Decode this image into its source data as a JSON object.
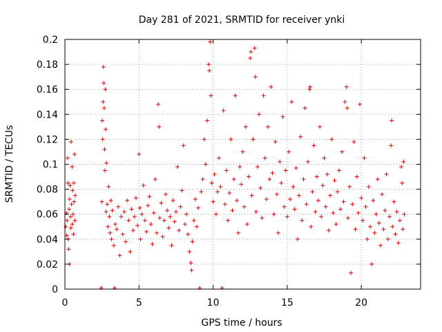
{
  "chart_data": {
    "type": "scatter",
    "title": "Day 281 of 2021, SRMTID for receiver ynki",
    "xlabel": "GPS time / hours",
    "ylabel": "SRMTID / TECUs",
    "xlim": [
      0,
      24
    ],
    "ylim": [
      0,
      0.2
    ],
    "x_ticks": [
      0,
      5,
      10,
      15,
      20
    ],
    "x_tick_labels": [
      "0",
      "5",
      "10",
      "15",
      "20"
    ],
    "y_ticks": [
      0,
      0.02,
      0.04,
      0.06,
      0.08,
      0.1,
      0.12,
      0.14,
      0.16,
      0.18,
      0.2
    ],
    "y_tick_labels": [
      "0",
      "0.02",
      "0.04",
      "0.06",
      "0.08",
      "0.1",
      "0.12",
      "0.14",
      "0.16",
      "0.18",
      "0.2"
    ],
    "grid": true,
    "marker": "+",
    "color": "#dd0000",
    "series": [
      {
        "name": "SRMTID",
        "points": [
          [
            0.05,
            0.05
          ],
          [
            0.1,
            0.061
          ],
          [
            0.12,
            0.043
          ],
          [
            0.15,
            0.055
          ],
          [
            0.18,
            0.105
          ],
          [
            0.2,
            0.085
          ],
          [
            0.22,
            0.04
          ],
          [
            0.25,
            0.032
          ],
          [
            0.28,
            0.064
          ],
          [
            0.3,
            0.02
          ],
          [
            0.32,
            0.072
          ],
          [
            0.35,
            0.083
          ],
          [
            0.38,
            0.058
          ],
          [
            0.4,
            0.049
          ],
          [
            0.42,
            0.118
          ],
          [
            0.45,
            0.068
          ],
          [
            0.48,
            0.098
          ],
          [
            0.5,
            0.052
          ],
          [
            0.52,
            0.079
          ],
          [
            0.55,
            0.06
          ],
          [
            0.58,
            0.044
          ],
          [
            0.6,
            0.085
          ],
          [
            0.62,
            0.07
          ],
          [
            0.65,
            0.108
          ],
          [
            0.68,
            0.055
          ],
          [
            0.7,
            0.075
          ],
          [
            2.45,
            0.001
          ],
          [
            2.5,
            0.07
          ],
          [
            2.52,
            0.135
          ],
          [
            2.55,
            0.12
          ],
          [
            2.58,
            0.15
          ],
          [
            2.6,
            0.178
          ],
          [
            2.62,
            0.165
          ],
          [
            2.65,
            0.145
          ],
          [
            2.68,
            0.112
          ],
          [
            2.7,
            0.095
          ],
          [
            2.72,
            0.16
          ],
          [
            2.75,
            0.128
          ],
          [
            2.78,
            0.062
          ],
          [
            2.8,
            0.101
          ],
          [
            2.85,
            0.068
          ],
          [
            2.9,
            0.05
          ],
          [
            2.95,
            0.082
          ],
          [
            3.0,
            0.058
          ],
          [
            3.05,
            0.045
          ],
          [
            3.1,
            0.071
          ],
          [
            3.15,
            0.04
          ],
          [
            3.2,
            0.063
          ],
          [
            3.3,
            0.035
          ],
          [
            3.35,
            0.001
          ],
          [
            3.4,
            0.052
          ],
          [
            3.5,
            0.048
          ],
          [
            3.6,
            0.066
          ],
          [
            3.7,
            0.027
          ],
          [
            3.8,
            0.058
          ],
          [
            3.9,
            0.044
          ],
          [
            4.0,
            0.062
          ],
          [
            4.1,
            0.038
          ],
          [
            4.2,
            0.071
          ],
          [
            4.3,
            0.055
          ],
          [
            4.4,
            0.03
          ],
          [
            4.5,
            0.064
          ],
          [
            4.6,
            0.047
          ],
          [
            4.7,
            0.058
          ],
          [
            4.8,
            0.073
          ],
          [
            4.9,
            0.051
          ],
          [
            5.0,
            0.108
          ],
          [
            5.05,
            0.065
          ],
          [
            5.1,
            0.04
          ],
          [
            5.2,
            0.06
          ],
          [
            5.3,
            0.083
          ],
          [
            5.4,
            0.055
          ],
          [
            5.5,
            0.046
          ],
          [
            5.6,
            0.067
          ],
          [
            5.7,
            0.074
          ],
          [
            5.8,
            0.052
          ],
          [
            5.9,
            0.036
          ],
          [
            6.0,
            0.061
          ],
          [
            6.1,
            0.088
          ],
          [
            6.2,
            0.045
          ],
          [
            6.3,
            0.148
          ],
          [
            6.35,
            0.13
          ],
          [
            6.4,
            0.057
          ],
          [
            6.5,
            0.069
          ],
          [
            6.6,
            0.042
          ],
          [
            6.7,
            0.055
          ],
          [
            6.8,
            0.076
          ],
          [
            6.9,
            0.063
          ],
          [
            7.0,
            0.049
          ],
          [
            7.1,
            0.058
          ],
          [
            7.2,
            0.035
          ],
          [
            7.3,
            0.071
          ],
          [
            7.4,
            0.054
          ],
          [
            7.5,
            0.062
          ],
          [
            7.6,
            0.098
          ],
          [
            7.7,
            0.047
          ],
          [
            7.8,
            0.066
          ],
          [
            7.9,
            0.079
          ],
          [
            8.0,
            0.115
          ],
          [
            8.1,
            0.052
          ],
          [
            8.2,
            0.06
          ],
          [
            8.3,
            0.044
          ],
          [
            8.4,
            0.03
          ],
          [
            8.5,
            0.021
          ],
          [
            8.55,
            0.015
          ],
          [
            8.6,
            0.038
          ],
          [
            8.7,
            0.055
          ],
          [
            8.8,
            0.072
          ],
          [
            8.9,
            0.05
          ],
          [
            9.0,
            0.065
          ],
          [
            9.1,
            0.001
          ],
          [
            9.2,
            0.078
          ],
          [
            9.3,
            0.088
          ],
          [
            9.4,
            0.12
          ],
          [
            9.5,
            0.1
          ],
          [
            9.6,
            0.135
          ],
          [
            9.7,
            0.18
          ],
          [
            9.75,
            0.175
          ],
          [
            9.8,
            0.198
          ],
          [
            9.85,
            0.155
          ],
          [
            9.9,
            0.085
          ],
          [
            10.0,
            0.07
          ],
          [
            10.1,
            0.092
          ],
          [
            10.2,
            0.06
          ],
          [
            10.3,
            0.078
          ],
          [
            10.4,
            0.105
          ],
          [
            10.5,
            0.082
          ],
          [
            10.6,
            0.001
          ],
          [
            10.7,
            0.143
          ],
          [
            10.8,
            0.068
          ],
          [
            10.9,
            0.095
          ],
          [
            11.0,
            0.055
          ],
          [
            11.1,
            0.077
          ],
          [
            11.2,
            0.12
          ],
          [
            11.3,
            0.063
          ],
          [
            11.4,
            0.088
          ],
          [
            11.5,
            0.155
          ],
          [
            11.6,
            0.071
          ],
          [
            11.7,
            0.045
          ],
          [
            11.8,
            0.098
          ],
          [
            11.9,
            0.084
          ],
          [
            12.0,
            0.11
          ],
          [
            12.1,
            0.066
          ],
          [
            12.2,
            0.13
          ],
          [
            12.3,
            0.052
          ],
          [
            12.4,
            0.09
          ],
          [
            12.5,
            0.185
          ],
          [
            12.55,
            0.19
          ],
          [
            12.6,
            0.075
          ],
          [
            12.7,
            0.12
          ],
          [
            12.8,
            0.193
          ],
          [
            12.85,
            0.17
          ],
          [
            12.9,
            0.062
          ],
          [
            13.0,
            0.098
          ],
          [
            13.1,
            0.14
          ],
          [
            13.2,
            0.081
          ],
          [
            13.3,
            0.057
          ],
          [
            13.4,
            0.155
          ],
          [
            13.5,
            0.105
          ],
          [
            13.6,
            0.072
          ],
          [
            13.7,
            0.13
          ],
          [
            13.8,
            0.088
          ],
          [
            13.9,
            0.162
          ],
          [
            14.0,
            0.093
          ],
          [
            14.1,
            0.06
          ],
          [
            14.2,
            0.118
          ],
          [
            14.3,
            0.076
          ],
          [
            14.4,
            0.045
          ],
          [
            14.5,
            0.102
          ],
          [
            14.6,
            0.085
          ],
          [
            14.7,
            0.138
          ],
          [
            14.8,
            0.066
          ],
          [
            14.9,
            0.095
          ],
          [
            15.0,
            0.058
          ],
          [
            15.1,
            0.11
          ],
          [
            15.2,
            0.072
          ],
          [
            15.3,
            0.15
          ],
          [
            15.4,
            0.082
          ],
          [
            15.5,
            0.064
          ],
          [
            15.6,
            0.097
          ],
          [
            15.7,
            0.04
          ],
          [
            15.8,
            0.075
          ],
          [
            15.9,
            0.122
          ],
          [
            16.0,
            0.055
          ],
          [
            16.1,
            0.088
          ],
          [
            16.2,
            0.145
          ],
          [
            16.3,
            0.068
          ],
          [
            16.4,
            0.102
          ],
          [
            16.5,
            0.16
          ],
          [
            16.55,
            0.162
          ],
          [
            16.6,
            0.05
          ],
          [
            16.7,
            0.078
          ],
          [
            16.8,
            0.115
          ],
          [
            16.9,
            0.062
          ],
          [
            17.0,
            0.09
          ],
          [
            17.1,
            0.071
          ],
          [
            17.2,
            0.13
          ],
          [
            17.3,
            0.058
          ],
          [
            17.4,
            0.083
          ],
          [
            17.5,
            0.105
          ],
          [
            17.6,
            0.066
          ],
          [
            17.7,
            0.092
          ],
          [
            17.8,
            0.047
          ],
          [
            17.9,
            0.075
          ],
          [
            18.0,
            0.12
          ],
          [
            18.1,
            0.061
          ],
          [
            18.2,
            0.087
          ],
          [
            18.3,
            0.052
          ],
          [
            18.4,
            0.078
          ],
          [
            18.5,
            0.095
          ],
          [
            18.6,
            0.064
          ],
          [
            18.7,
            0.11
          ],
          [
            18.8,
            0.07
          ],
          [
            18.9,
            0.15
          ],
          [
            19.0,
            0.162
          ],
          [
            19.05,
            0.145
          ],
          [
            19.1,
            0.057
          ],
          [
            19.2,
            0.082
          ],
          [
            19.3,
            0.013
          ],
          [
            19.4,
            0.068
          ],
          [
            19.5,
            0.118
          ],
          [
            19.6,
            0.048
          ],
          [
            19.7,
            0.09
          ],
          [
            19.8,
            0.061
          ],
          [
            19.9,
            0.148
          ],
          [
            20.0,
            0.073
          ],
          [
            20.1,
            0.055
          ],
          [
            20.2,
            0.105
          ],
          [
            20.3,
            0.066
          ],
          [
            20.4,
            0.04
          ],
          [
            20.5,
            0.082
          ],
          [
            20.6,
            0.05
          ],
          [
            20.7,
            0.02
          ],
          [
            20.8,
            0.071
          ],
          [
            20.9,
            0.045
          ],
          [
            21.0,
            0.06
          ],
          [
            21.1,
            0.088
          ],
          [
            21.2,
            0.053
          ],
          [
            21.3,
            0.035
          ],
          [
            21.4,
            0.076
          ],
          [
            21.5,
            0.048
          ],
          [
            21.6,
            0.063
          ],
          [
            21.7,
            0.092
          ],
          [
            21.8,
            0.04
          ],
          [
            21.9,
            0.058
          ],
          [
            22.0,
            0.115
          ],
          [
            22.05,
            0.135
          ],
          [
            22.1,
            0.05
          ],
          [
            22.2,
            0.07
          ],
          [
            22.3,
            0.044
          ],
          [
            22.4,
            0.062
          ],
          [
            22.5,
            0.037
          ],
          [
            22.6,
            0.055
          ],
          [
            22.7,
            0.098
          ],
          [
            22.75,
            0.085
          ],
          [
            22.8,
            0.048
          ],
          [
            22.85,
            0.102
          ],
          [
            22.9,
            0.06
          ]
        ]
      }
    ]
  }
}
